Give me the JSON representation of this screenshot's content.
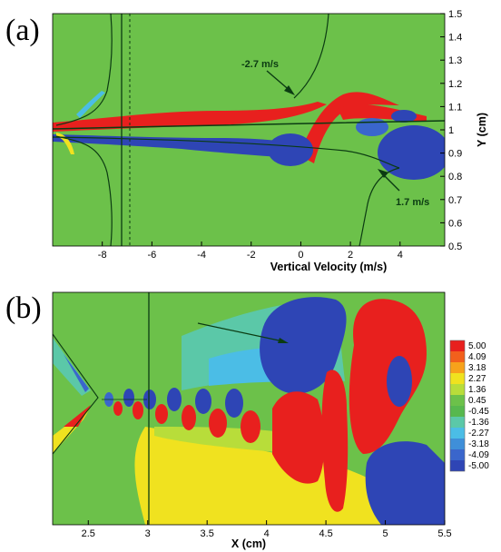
{
  "panels": {
    "a": {
      "label": "(a)"
    },
    "b": {
      "label": "(b)"
    }
  },
  "chart_data": [
    {
      "type": "heatmap",
      "panel": "(a)",
      "title": "",
      "xlabel": "Vertical Velocity (m/s)",
      "ylabel": "Y (cm)",
      "xlim": [
        -10,
        5.8
      ],
      "ylim": [
        0.5,
        1.5
      ],
      "x_ticks": [
        "-8",
        "-6",
        "-4",
        "-2",
        "0",
        "2",
        "4"
      ],
      "y_ticks": [
        "0.5",
        "0.6",
        "0.7",
        "0.8",
        "0.9",
        "1",
        "1.1",
        "1.2",
        "1.3",
        "1.4",
        "1.5"
      ],
      "annotations": [
        "-2.7 m/s",
        "1.7 m/s"
      ],
      "grid": false
    },
    {
      "type": "heatmap",
      "panel": "(b)",
      "title": "",
      "xlabel": "X (cm)",
      "ylabel": "",
      "xlim": [
        2.2,
        5.5
      ],
      "x_ticks": [
        "2.5",
        "3",
        "3.5",
        "4",
        "4.5",
        "5",
        "5.5"
      ],
      "colorbar": {
        "levels": [
          "5.00",
          "4.09",
          "3.18",
          "2.27",
          "1.36",
          "0.45",
          "-0.45",
          "-1.36",
          "-2.27",
          "-3.18",
          "-4.09",
          "-5.00"
        ],
        "colors": [
          "#e8201e",
          "#f2601c",
          "#f7a21b",
          "#f0e21f",
          "#b8dd3a",
          "#6cc14a",
          "#57b84e",
          "#5bc8a8",
          "#4bbde6",
          "#3f8fd9",
          "#3a66cc",
          "#2e45b5"
        ]
      },
      "grid": false
    }
  ]
}
